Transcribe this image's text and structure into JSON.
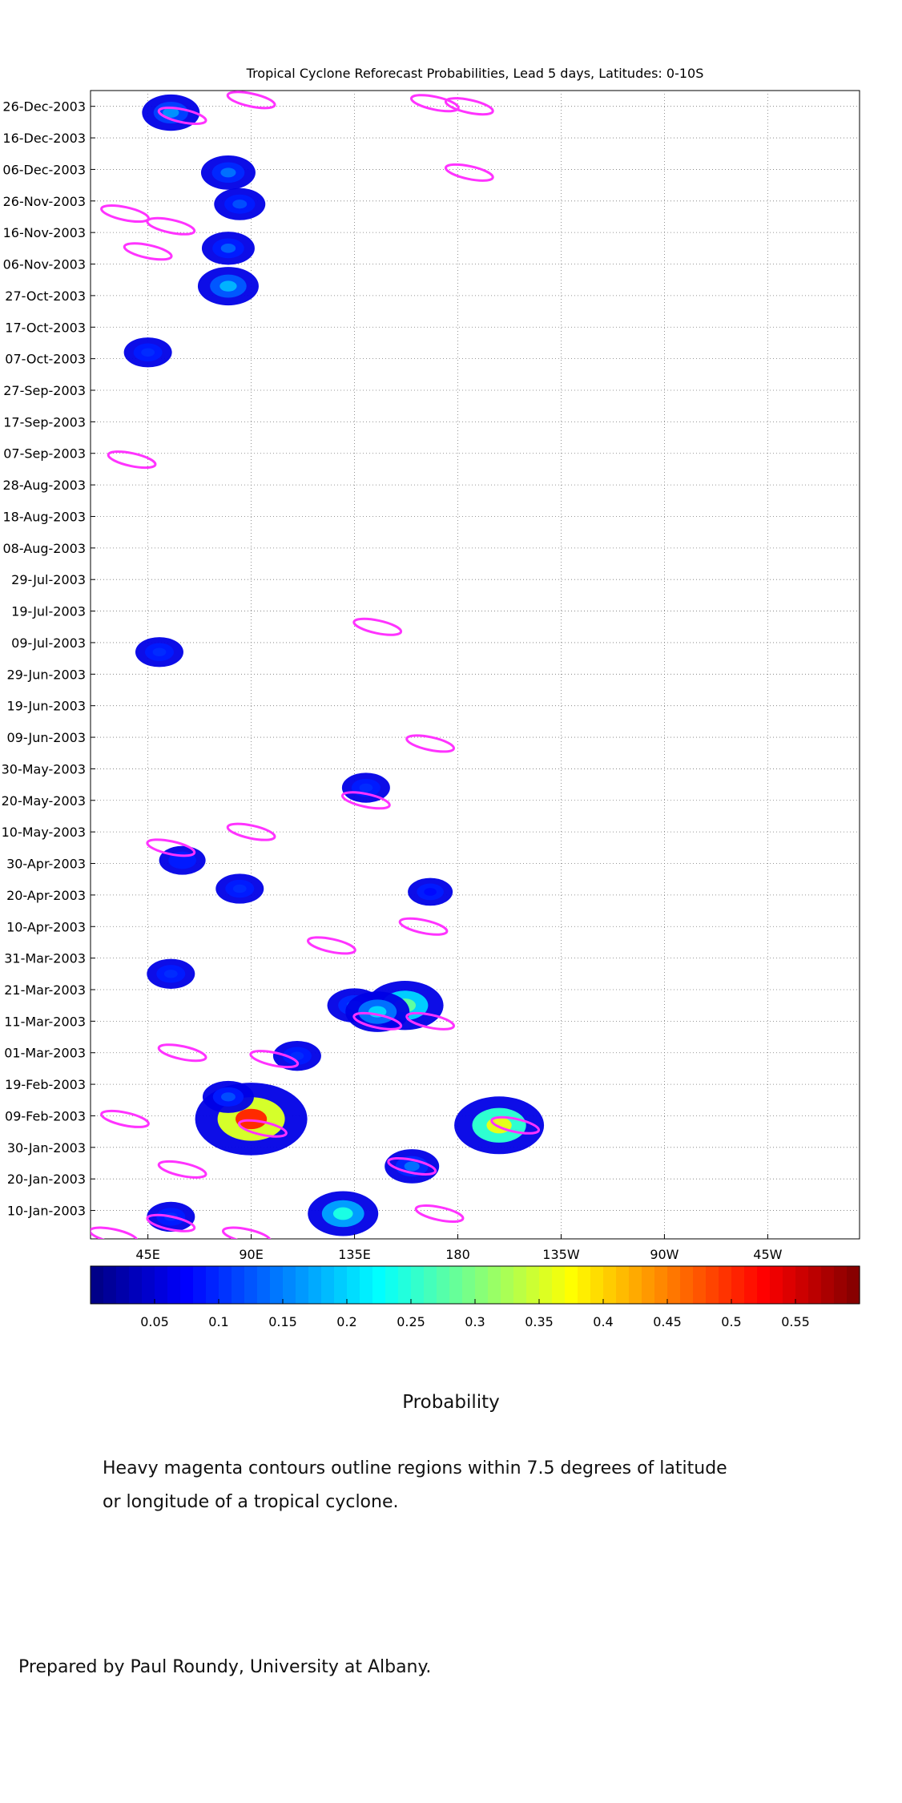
{
  "chart_data": {
    "type": "heatmap",
    "title": "Tropical Cyclone Reforecast Probabilities, Lead 5 days, Latitudes: 0-10S",
    "x_ticks": [
      "45E",
      "90E",
      "135E",
      "180",
      "135W",
      "90W",
      "45W"
    ],
    "x_tick_values": [
      45,
      90,
      135,
      180,
      225,
      270,
      315
    ],
    "x_range": [
      20,
      355
    ],
    "y_ticks": [
      "26-Dec-2003",
      "16-Dec-2003",
      "06-Dec-2003",
      "26-Nov-2003",
      "16-Nov-2003",
      "06-Nov-2003",
      "27-Oct-2003",
      "17-Oct-2003",
      "07-Oct-2003",
      "27-Sep-2003",
      "17-Sep-2003",
      "07-Sep-2003",
      "28-Aug-2003",
      "18-Aug-2003",
      "08-Aug-2003",
      "29-Jul-2003",
      "19-Jul-2003",
      "09-Jul-2003",
      "29-Jun-2003",
      "19-Jun-2003",
      "09-Jun-2003",
      "30-May-2003",
      "20-May-2003",
      "10-May-2003",
      "30-Apr-2003",
      "20-Apr-2003",
      "10-Apr-2003",
      "31-Mar-2003",
      "21-Mar-2003",
      "11-Mar-2003",
      "01-Mar-2003",
      "19-Feb-2003",
      "09-Feb-2003",
      "30-Jan-2003",
      "20-Jan-2003",
      "10-Jan-2003"
    ],
    "y_range": [
      "01-Jan-2003",
      "31-Dec-2003"
    ],
    "grid": true,
    "colorbar": {
      "ticks": [
        "0.05",
        "0.1",
        "0.15",
        "0.2",
        "0.25",
        "0.3",
        "0.35",
        "0.4",
        "0.45",
        "0.5",
        "0.55"
      ],
      "tick_values": [
        0.05,
        0.1,
        0.15,
        0.2,
        0.25,
        0.3,
        0.35,
        0.4,
        0.45,
        0.5,
        0.55
      ],
      "range": [
        0,
        0.6
      ],
      "label": "Probability",
      "colormap": "jet"
    },
    "contour_color": "#ff33ff",
    "blobs": [
      {
        "lon": 55,
        "date": "24-Dec-2003",
        "p": 0.16
      },
      {
        "lon": 80,
        "date": "05-Dec-2003",
        "p": 0.14
      },
      {
        "lon": 85,
        "date": "25-Nov-2003",
        "p": 0.12
      },
      {
        "lon": 80,
        "date": "11-Nov-2003",
        "p": 0.13
      },
      {
        "lon": 80,
        "date": "30-Oct-2003",
        "p": 0.18
      },
      {
        "lon": 45,
        "date": "09-Oct-2003",
        "p": 0.1
      },
      {
        "lon": 50,
        "date": "06-Jul-2003",
        "p": 0.1
      },
      {
        "lon": 140,
        "date": "24-May-2003",
        "p": 0.1
      },
      {
        "lon": 60,
        "date": "01-May-2003",
        "p": 0.09
      },
      {
        "lon": 85,
        "date": "22-Apr-2003",
        "p": 0.1
      },
      {
        "lon": 55,
        "date": "26-Mar-2003",
        "p": 0.1
      },
      {
        "lon": 168,
        "date": "21-Apr-2003",
        "p": 0.08
      },
      {
        "lon": 135,
        "date": "16-Mar-2003",
        "p": 0.14
      },
      {
        "lon": 157,
        "date": "16-Mar-2003",
        "p": 0.28
      },
      {
        "lon": 145,
        "date": "14-Mar-2003",
        "p": 0.2
      },
      {
        "lon": 110,
        "date": "28-Feb-2003",
        "p": 0.1
      },
      {
        "lon": 90,
        "date": "08-Feb-2003",
        "p": 0.5
      },
      {
        "lon": 80,
        "date": "15-Feb-2003",
        "p": 0.12
      },
      {
        "lon": 198,
        "date": "06-Feb-2003",
        "p": 0.36
      },
      {
        "lon": 160,
        "date": "24-Jan-2003",
        "p": 0.14
      },
      {
        "lon": 130,
        "date": "09-Jan-2003",
        "p": 0.24
      },
      {
        "lon": 55,
        "date": "08-Jan-2003",
        "p": 0.1
      }
    ],
    "contours": [
      {
        "lon": 60,
        "date": "23-Dec-2003"
      },
      {
        "lon": 90,
        "date": "28-Dec-2003"
      },
      {
        "lon": 170,
        "date": "27-Dec-2003"
      },
      {
        "lon": 185,
        "date": "26-Dec-2003"
      },
      {
        "lon": 185,
        "date": "05-Dec-2003"
      },
      {
        "lon": 35,
        "date": "22-Nov-2003"
      },
      {
        "lon": 55,
        "date": "18-Nov-2003"
      },
      {
        "lon": 45,
        "date": "10-Nov-2003"
      },
      {
        "lon": 38,
        "date": "05-Sep-2003"
      },
      {
        "lon": 145,
        "date": "14-Jul-2003"
      },
      {
        "lon": 168,
        "date": "07-Jun-2003"
      },
      {
        "lon": 140,
        "date": "20-May-2003"
      },
      {
        "lon": 90,
        "date": "10-May-2003"
      },
      {
        "lon": 55,
        "date": "05-May-2003"
      },
      {
        "lon": 165,
        "date": "10-Apr-2003"
      },
      {
        "lon": 125,
        "date": "04-Apr-2003"
      },
      {
        "lon": 145,
        "date": "11-Mar-2003"
      },
      {
        "lon": 168,
        "date": "11-Mar-2003"
      },
      {
        "lon": 60,
        "date": "01-Mar-2003"
      },
      {
        "lon": 100,
        "date": "27-Feb-2003"
      },
      {
        "lon": 95,
        "date": "05-Feb-2003"
      },
      {
        "lon": 35,
        "date": "08-Feb-2003"
      },
      {
        "lon": 60,
        "date": "23-Jan-2003"
      },
      {
        "lon": 160,
        "date": "24-Jan-2003"
      },
      {
        "lon": 172,
        "date": "09-Jan-2003"
      },
      {
        "lon": 55,
        "date": "06-Jan-2003"
      },
      {
        "lon": 30,
        "date": "02-Jan-2003"
      },
      {
        "lon": 88,
        "date": "02-Jan-2003"
      },
      {
        "lon": 205,
        "date": "06-Feb-2003"
      }
    ]
  },
  "notes": {
    "colorbar_label": "Probability",
    "contour_line_1": "Heavy magenta contours outline regions within 7.5 degrees of latitude",
    "contour_line_2": "or longitude of a tropical cyclone.",
    "credit": "Prepared by Paul Roundy, University at Albany."
  }
}
